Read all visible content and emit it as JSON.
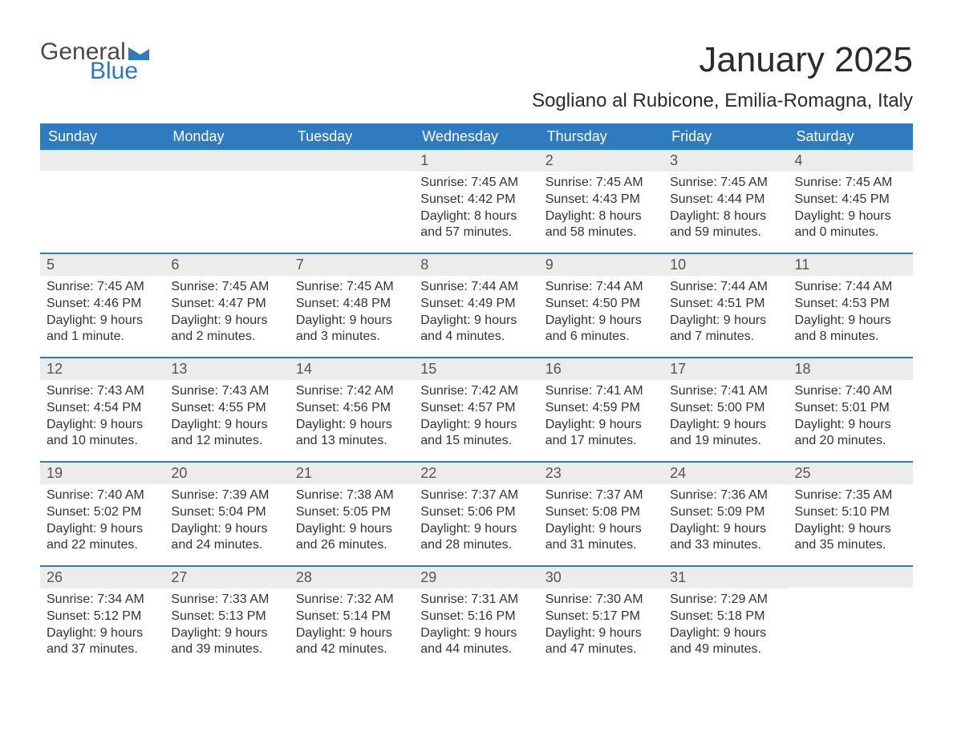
{
  "logo": {
    "line1": "General",
    "line2": "Blue",
    "triangle_color": "#2f7bbf"
  },
  "title": "January 2025",
  "subtitle": "Sogliano al Rubicone, Emilia-Romagna, Italy",
  "colors": {
    "header_bg": "#2f7bbf",
    "header_text": "#ffffff",
    "daynum_bg": "#ececec",
    "body_text": "#333333",
    "rule": "#2f7bbf"
  },
  "day_names": [
    "Sunday",
    "Monday",
    "Tuesday",
    "Wednesday",
    "Thursday",
    "Friday",
    "Saturday"
  ],
  "weeks": [
    [
      {
        "n": "",
        "sunrise": "",
        "sunset": "",
        "d1": "",
        "d2": ""
      },
      {
        "n": "",
        "sunrise": "",
        "sunset": "",
        "d1": "",
        "d2": ""
      },
      {
        "n": "",
        "sunrise": "",
        "sunset": "",
        "d1": "",
        "d2": ""
      },
      {
        "n": "1",
        "sunrise": "Sunrise: 7:45 AM",
        "sunset": "Sunset: 4:42 PM",
        "d1": "Daylight: 8 hours",
        "d2": "and 57 minutes."
      },
      {
        "n": "2",
        "sunrise": "Sunrise: 7:45 AM",
        "sunset": "Sunset: 4:43 PM",
        "d1": "Daylight: 8 hours",
        "d2": "and 58 minutes."
      },
      {
        "n": "3",
        "sunrise": "Sunrise: 7:45 AM",
        "sunset": "Sunset: 4:44 PM",
        "d1": "Daylight: 8 hours",
        "d2": "and 59 minutes."
      },
      {
        "n": "4",
        "sunrise": "Sunrise: 7:45 AM",
        "sunset": "Sunset: 4:45 PM",
        "d1": "Daylight: 9 hours",
        "d2": "and 0 minutes."
      }
    ],
    [
      {
        "n": "5",
        "sunrise": "Sunrise: 7:45 AM",
        "sunset": "Sunset: 4:46 PM",
        "d1": "Daylight: 9 hours",
        "d2": "and 1 minute."
      },
      {
        "n": "6",
        "sunrise": "Sunrise: 7:45 AM",
        "sunset": "Sunset: 4:47 PM",
        "d1": "Daylight: 9 hours",
        "d2": "and 2 minutes."
      },
      {
        "n": "7",
        "sunrise": "Sunrise: 7:45 AM",
        "sunset": "Sunset: 4:48 PM",
        "d1": "Daylight: 9 hours",
        "d2": "and 3 minutes."
      },
      {
        "n": "8",
        "sunrise": "Sunrise: 7:44 AM",
        "sunset": "Sunset: 4:49 PM",
        "d1": "Daylight: 9 hours",
        "d2": "and 4 minutes."
      },
      {
        "n": "9",
        "sunrise": "Sunrise: 7:44 AM",
        "sunset": "Sunset: 4:50 PM",
        "d1": "Daylight: 9 hours",
        "d2": "and 6 minutes."
      },
      {
        "n": "10",
        "sunrise": "Sunrise: 7:44 AM",
        "sunset": "Sunset: 4:51 PM",
        "d1": "Daylight: 9 hours",
        "d2": "and 7 minutes."
      },
      {
        "n": "11",
        "sunrise": "Sunrise: 7:44 AM",
        "sunset": "Sunset: 4:53 PM",
        "d1": "Daylight: 9 hours",
        "d2": "and 8 minutes."
      }
    ],
    [
      {
        "n": "12",
        "sunrise": "Sunrise: 7:43 AM",
        "sunset": "Sunset: 4:54 PM",
        "d1": "Daylight: 9 hours",
        "d2": "and 10 minutes."
      },
      {
        "n": "13",
        "sunrise": "Sunrise: 7:43 AM",
        "sunset": "Sunset: 4:55 PM",
        "d1": "Daylight: 9 hours",
        "d2": "and 12 minutes."
      },
      {
        "n": "14",
        "sunrise": "Sunrise: 7:42 AM",
        "sunset": "Sunset: 4:56 PM",
        "d1": "Daylight: 9 hours",
        "d2": "and 13 minutes."
      },
      {
        "n": "15",
        "sunrise": "Sunrise: 7:42 AM",
        "sunset": "Sunset: 4:57 PM",
        "d1": "Daylight: 9 hours",
        "d2": "and 15 minutes."
      },
      {
        "n": "16",
        "sunrise": "Sunrise: 7:41 AM",
        "sunset": "Sunset: 4:59 PM",
        "d1": "Daylight: 9 hours",
        "d2": "and 17 minutes."
      },
      {
        "n": "17",
        "sunrise": "Sunrise: 7:41 AM",
        "sunset": "Sunset: 5:00 PM",
        "d1": "Daylight: 9 hours",
        "d2": "and 19 minutes."
      },
      {
        "n": "18",
        "sunrise": "Sunrise: 7:40 AM",
        "sunset": "Sunset: 5:01 PM",
        "d1": "Daylight: 9 hours",
        "d2": "and 20 minutes."
      }
    ],
    [
      {
        "n": "19",
        "sunrise": "Sunrise: 7:40 AM",
        "sunset": "Sunset: 5:02 PM",
        "d1": "Daylight: 9 hours",
        "d2": "and 22 minutes."
      },
      {
        "n": "20",
        "sunrise": "Sunrise: 7:39 AM",
        "sunset": "Sunset: 5:04 PM",
        "d1": "Daylight: 9 hours",
        "d2": "and 24 minutes."
      },
      {
        "n": "21",
        "sunrise": "Sunrise: 7:38 AM",
        "sunset": "Sunset: 5:05 PM",
        "d1": "Daylight: 9 hours",
        "d2": "and 26 minutes."
      },
      {
        "n": "22",
        "sunrise": "Sunrise: 7:37 AM",
        "sunset": "Sunset: 5:06 PM",
        "d1": "Daylight: 9 hours",
        "d2": "and 28 minutes."
      },
      {
        "n": "23",
        "sunrise": "Sunrise: 7:37 AM",
        "sunset": "Sunset: 5:08 PM",
        "d1": "Daylight: 9 hours",
        "d2": "and 31 minutes."
      },
      {
        "n": "24",
        "sunrise": "Sunrise: 7:36 AM",
        "sunset": "Sunset: 5:09 PM",
        "d1": "Daylight: 9 hours",
        "d2": "and 33 minutes."
      },
      {
        "n": "25",
        "sunrise": "Sunrise: 7:35 AM",
        "sunset": "Sunset: 5:10 PM",
        "d1": "Daylight: 9 hours",
        "d2": "and 35 minutes."
      }
    ],
    [
      {
        "n": "26",
        "sunrise": "Sunrise: 7:34 AM",
        "sunset": "Sunset: 5:12 PM",
        "d1": "Daylight: 9 hours",
        "d2": "and 37 minutes."
      },
      {
        "n": "27",
        "sunrise": "Sunrise: 7:33 AM",
        "sunset": "Sunset: 5:13 PM",
        "d1": "Daylight: 9 hours",
        "d2": "and 39 minutes."
      },
      {
        "n": "28",
        "sunrise": "Sunrise: 7:32 AM",
        "sunset": "Sunset: 5:14 PM",
        "d1": "Daylight: 9 hours",
        "d2": "and 42 minutes."
      },
      {
        "n": "29",
        "sunrise": "Sunrise: 7:31 AM",
        "sunset": "Sunset: 5:16 PM",
        "d1": "Daylight: 9 hours",
        "d2": "and 44 minutes."
      },
      {
        "n": "30",
        "sunrise": "Sunrise: 7:30 AM",
        "sunset": "Sunset: 5:17 PM",
        "d1": "Daylight: 9 hours",
        "d2": "and 47 minutes."
      },
      {
        "n": "31",
        "sunrise": "Sunrise: 7:29 AM",
        "sunset": "Sunset: 5:18 PM",
        "d1": "Daylight: 9 hours",
        "d2": "and 49 minutes."
      },
      {
        "n": "",
        "sunrise": "",
        "sunset": "",
        "d1": "",
        "d2": ""
      }
    ]
  ]
}
